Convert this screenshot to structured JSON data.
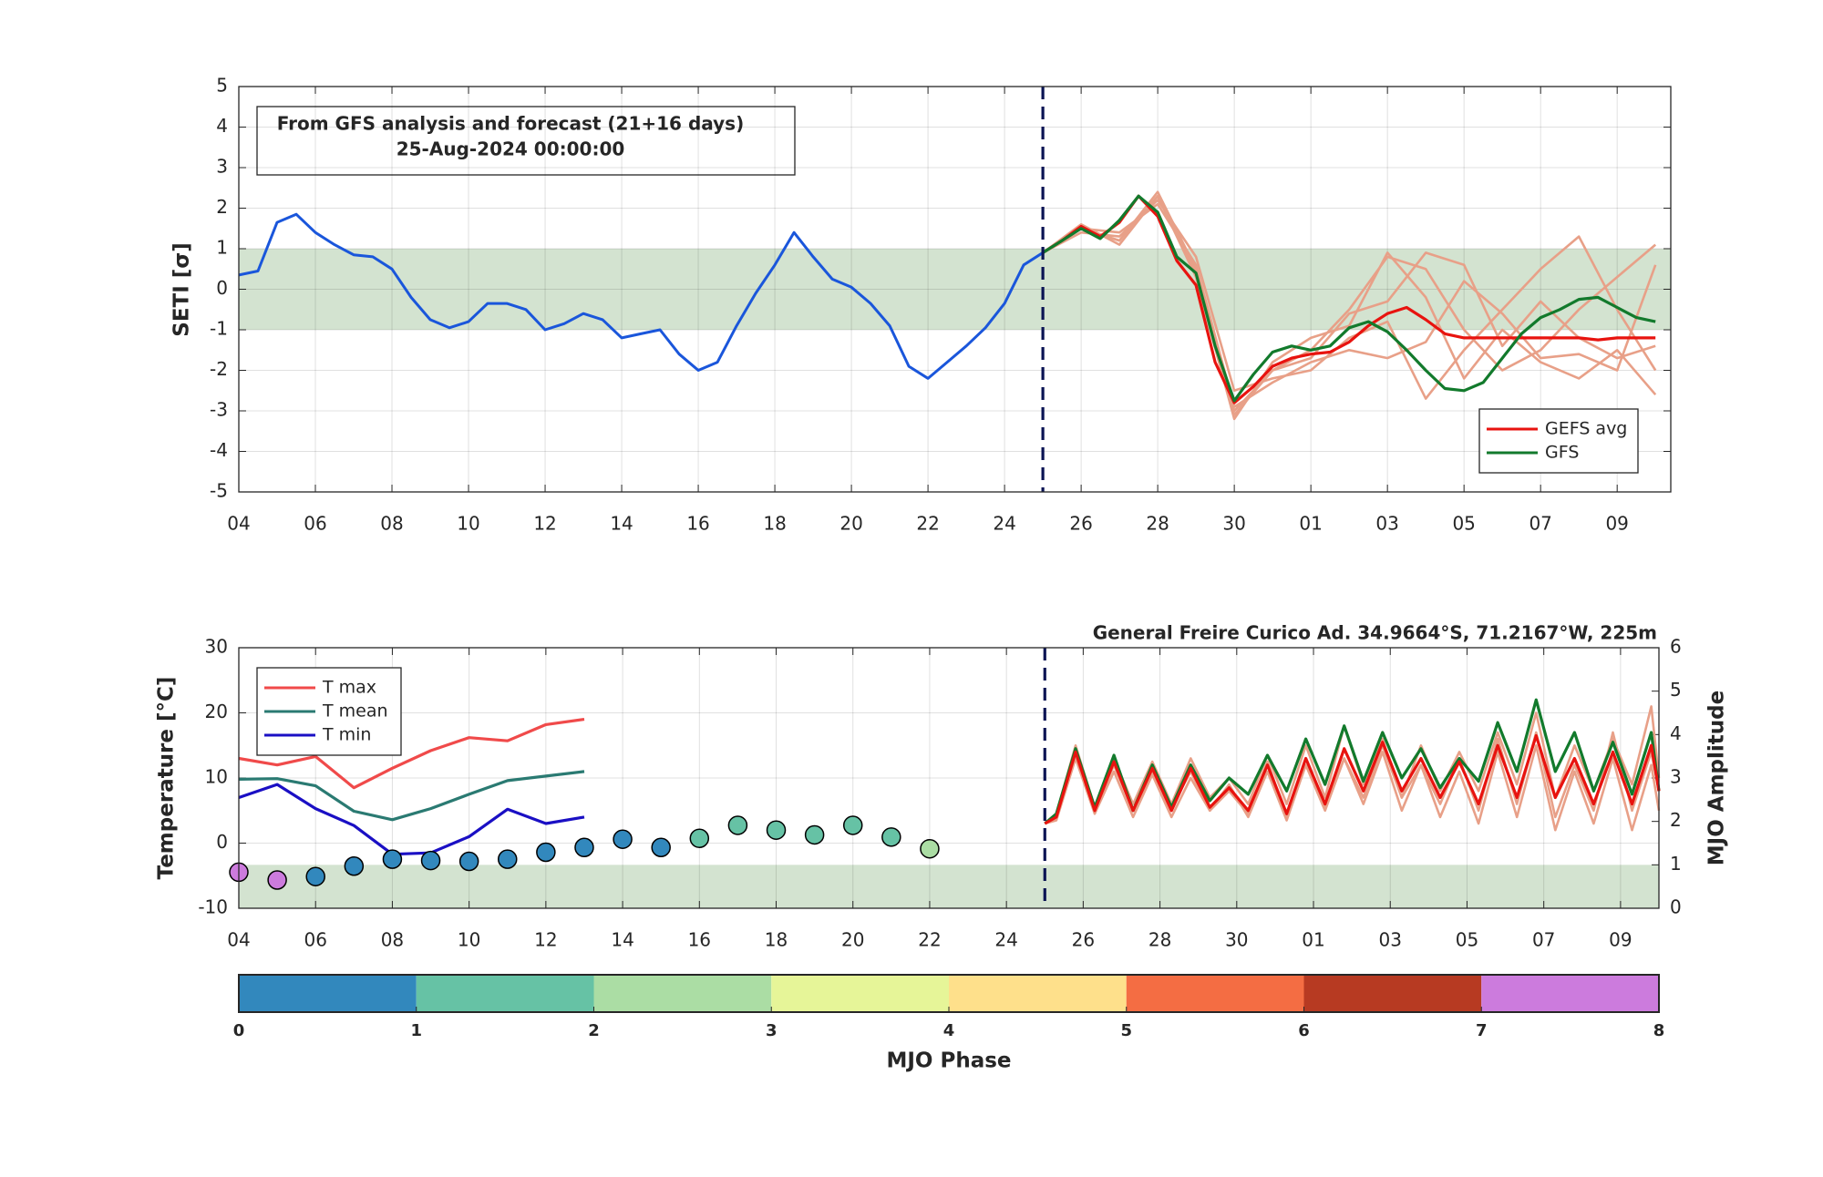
{
  "chart_data": [
    {
      "type": "line",
      "ylabel": "SETI [σ]",
      "annotation": [
        "From GFS analysis and forecast (21+16 days)",
        "25-Aug-2024 00:00:00"
      ],
      "xlim": [
        0,
        37.4
      ],
      "ylim": [
        -5,
        5
      ],
      "yticks": [
        -5,
        -4,
        -3,
        -2,
        -1,
        0,
        1,
        2,
        3,
        4,
        5
      ],
      "xticks": [
        {
          "value": 0,
          "label": "04"
        },
        {
          "value": 2,
          "label": "06"
        },
        {
          "value": 4,
          "label": "08"
        },
        {
          "value": 6,
          "label": "10"
        },
        {
          "value": 8,
          "label": "12"
        },
        {
          "value": 10,
          "label": "14"
        },
        {
          "value": 12,
          "label": "16"
        },
        {
          "value": 14,
          "label": "18"
        },
        {
          "value": 16,
          "label": "20"
        },
        {
          "value": 18,
          "label": "22"
        },
        {
          "value": 20,
          "label": "24"
        },
        {
          "value": 22,
          "label": "26"
        },
        {
          "value": 24,
          "label": "28"
        },
        {
          "value": 26,
          "label": "30"
        },
        {
          "value": 28,
          "label": "01"
        },
        {
          "value": 30,
          "label": "03"
        },
        {
          "value": 32,
          "label": "05"
        },
        {
          "value": 34,
          "label": "07"
        },
        {
          "value": 36,
          "label": "09"
        }
      ],
      "grid": true,
      "band": [
        -1,
        1
      ],
      "band_color": "#d3e3d0",
      "forecast_start": 21,
      "legend": "lower right",
      "analysis": {
        "color": "#1a56db",
        "x": [
          0,
          0.5,
          1,
          1.5,
          2,
          2.5,
          3,
          3.5,
          4,
          4.5,
          5,
          5.5,
          6,
          6.5,
          7,
          7.5,
          8,
          8.5,
          9,
          9.5,
          10,
          10.5,
          11,
          11.5,
          12,
          12.5,
          13,
          13.5,
          14,
          14.5,
          15,
          15.5,
          16,
          16.5,
          17,
          17.5,
          18,
          18.5,
          19,
          19.5,
          20,
          20.5,
          21
        ],
        "values": [
          0.35,
          0.45,
          1.65,
          1.85,
          1.4,
          1.1,
          0.85,
          0.8,
          0.5,
          -0.2,
          -0.75,
          -0.95,
          -0.8,
          -0.35,
          -0.35,
          -0.5,
          -1.0,
          -0.85,
          -0.6,
          -0.75,
          -1.2,
          -1.1,
          -1.0,
          -1.6,
          -2.0,
          -1.8,
          -0.9,
          -0.1,
          0.6,
          1.4,
          0.8,
          0.25,
          0.05,
          -0.35,
          -0.9,
          -1.9,
          -2.2,
          -1.8,
          -1.4,
          -0.95,
          -0.35,
          0.6,
          0.9
        ]
      },
      "ensemble": {
        "color": "#e8a088",
        "x": [
          21,
          22,
          23,
          24,
          25,
          26,
          27,
          28,
          29,
          30,
          31,
          32,
          33,
          34,
          35,
          36,
          37
        ],
        "members": [
          [
            0.9,
            1.5,
            1.2,
            2.4,
            0.5,
            -3.0,
            -2.0,
            -1.5,
            -0.5,
            0.8,
            0.5,
            -1.0,
            -2.0,
            -1.5,
            -0.5,
            0.3,
            1.1
          ],
          [
            0.9,
            1.4,
            1.3,
            2.2,
            0.8,
            -2.5,
            -2.2,
            -2.0,
            -1.2,
            -0.8,
            -2.7,
            -1.5,
            -0.5,
            0.5,
            1.3,
            -0.5,
            -2.0
          ],
          [
            0.9,
            1.6,
            1.1,
            2.3,
            0.3,
            -3.2,
            -1.8,
            -1.2,
            -0.9,
            0.9,
            -0.2,
            -2.2,
            -1.0,
            -1.8,
            -2.2,
            -1.5,
            -2.6
          ],
          [
            0.9,
            1.5,
            1.4,
            2.1,
            0.6,
            -2.9,
            -2.3,
            -1.8,
            -1.5,
            -1.7,
            -1.3,
            0.2,
            -0.6,
            -1.7,
            -1.6,
            -2.0,
            0.6
          ],
          [
            0.9,
            1.5,
            1.2,
            2.3,
            0.4,
            -3.1,
            -2.0,
            -1.7,
            -0.6,
            -0.3,
            0.9,
            0.6,
            -1.4,
            -0.3,
            -1.2,
            -1.7,
            -1.4
          ]
        ]
      },
      "series": [
        {
          "name": "GEFS avg",
          "color": "#e8130f",
          "x": [
            21,
            21.5,
            22,
            22.5,
            23,
            23.5,
            24,
            24.5,
            25,
            25.5,
            26,
            26.5,
            27,
            27.5,
            28,
            28.5,
            29,
            29.5,
            30,
            30.5,
            31,
            31.5,
            32,
            32.5,
            33,
            33.5,
            34,
            34.5,
            35,
            35.5,
            36,
            36.5,
            37
          ],
          "values": [
            0.9,
            1.2,
            1.55,
            1.3,
            1.65,
            2.3,
            1.8,
            0.7,
            0.1,
            -1.8,
            -2.8,
            -2.4,
            -1.9,
            -1.7,
            -1.6,
            -1.55,
            -1.3,
            -0.9,
            -0.6,
            -0.45,
            -0.75,
            -1.1,
            -1.2,
            -1.2,
            -1.2,
            -1.2,
            -1.2,
            -1.2,
            -1.2,
            -1.25,
            -1.2,
            -1.2,
            -1.2
          ]
        },
        {
          "name": "GFS",
          "color": "#127a2c",
          "x": [
            21,
            21.5,
            22,
            22.5,
            23,
            23.5,
            24,
            24.5,
            25,
            25.5,
            26,
            26.5,
            27,
            27.5,
            28,
            28.5,
            29,
            29.5,
            30,
            30.5,
            31,
            31.5,
            32,
            32.5,
            33,
            33.5,
            34,
            34.5,
            35,
            35.5,
            36,
            36.5,
            37
          ],
          "values": [
            0.9,
            1.2,
            1.5,
            1.25,
            1.7,
            2.3,
            1.9,
            0.8,
            0.4,
            -1.4,
            -2.75,
            -2.1,
            -1.55,
            -1.4,
            -1.5,
            -1.4,
            -0.95,
            -0.8,
            -1.05,
            -1.5,
            -2.0,
            -2.45,
            -2.5,
            -2.3,
            -1.7,
            -1.1,
            -0.7,
            -0.5,
            -0.25,
            -0.2,
            -0.45,
            -0.7,
            -0.8
          ]
        }
      ]
    },
    {
      "type": "line",
      "title": "General Freire Curico Ad. 34.9664°S, 71.2167°W, 225m",
      "ylabel": "Temperature [°C]",
      "y2label": "MJO Amplitude",
      "xlim": [
        0,
        37
      ],
      "ylim": [
        -10,
        30
      ],
      "yticks": [
        -10,
        0,
        10,
        20,
        30
      ],
      "y2lim": [
        0,
        6
      ],
      "y2ticks": [
        0,
        1,
        2,
        3,
        4,
        5,
        6
      ],
      "xticks": [
        {
          "value": 0,
          "label": "04"
        },
        {
          "value": 2,
          "label": "06"
        },
        {
          "value": 4,
          "label": "08"
        },
        {
          "value": 6,
          "label": "10"
        },
        {
          "value": 8,
          "label": "12"
        },
        {
          "value": 10,
          "label": "14"
        },
        {
          "value": 12,
          "label": "16"
        },
        {
          "value": 14,
          "label": "18"
        },
        {
          "value": 16,
          "label": "20"
        },
        {
          "value": 18,
          "label": "22"
        },
        {
          "value": 20,
          "label": "24"
        },
        {
          "value": 22,
          "label": "26"
        },
        {
          "value": 24,
          "label": "28"
        },
        {
          "value": 26,
          "label": "30"
        },
        {
          "value": 28,
          "label": "01"
        },
        {
          "value": 30,
          "label": "03"
        },
        {
          "value": 32,
          "label": "05"
        },
        {
          "value": 34,
          "label": "07"
        },
        {
          "value": 36,
          "label": "09"
        }
      ],
      "grid": true,
      "band": [
        0,
        1
      ],
      "band_color": "#d3e3d0",
      "forecast_start": 21,
      "legend": "upper left",
      "series": [
        {
          "name": "T max",
          "color": "#f04a4a",
          "x": [
            0,
            1,
            2,
            3,
            4,
            5,
            6,
            7,
            8,
            9
          ],
          "values": [
            13,
            12,
            13.3,
            8.5,
            11.5,
            14.2,
            16.2,
            15.7,
            18.2,
            19
          ]
        },
        {
          "name": "T mean",
          "color": "#2a7a72",
          "x": [
            0,
            1,
            2,
            3,
            4,
            5,
            6,
            7,
            8,
            9
          ],
          "values": [
            9.8,
            9.9,
            8.8,
            4.9,
            3.6,
            5.3,
            7.5,
            9.6,
            10.3,
            11
          ]
        },
        {
          "name": "T min",
          "color": "#1a0fc4",
          "x": [
            0,
            1,
            2,
            3,
            4,
            5,
            6,
            7,
            8,
            9
          ],
          "values": [
            7,
            9,
            5.3,
            2.7,
            -1.7,
            -1.5,
            1,
            5.2,
            3,
            4
          ]
        }
      ],
      "forecast_x": [
        21,
        21.3,
        21.8,
        22.3,
        22.8,
        23.3,
        23.8,
        24.3,
        24.8,
        25.3,
        25.8,
        26.3,
        26.8,
        27.3,
        27.8,
        28.3,
        28.8,
        29.3,
        29.8,
        30.3,
        30.8,
        31.3,
        31.8,
        32.3,
        32.8,
        33.3,
        33.8,
        34.3,
        34.8,
        35.3,
        35.8,
        36.3,
        36.8,
        37
      ],
      "ensemble": {
        "color": "#e8a088",
        "members": [
          [
            3,
            3.5,
            13,
            4.5,
            11,
            4,
            10.5,
            4,
            10,
            5,
            9,
            4,
            11,
            3.5,
            12,
            5,
            13,
            6,
            14,
            5,
            12,
            4,
            11,
            3,
            14,
            4,
            15,
            2,
            11,
            3,
            13,
            2,
            12,
            5
          ],
          [
            3,
            4.5,
            15,
            5.5,
            13,
            6,
            12.5,
            6,
            13,
            7,
            10,
            6,
            13.5,
            6,
            15,
            7,
            18,
            9,
            16,
            7,
            15,
            8,
            14,
            8,
            17,
            9,
            20,
            7,
            15,
            8,
            16,
            9,
            21,
            10
          ],
          [
            3,
            4,
            13.5,
            5,
            12,
            5,
            11,
            5.5,
            11,
            5,
            8,
            4.5,
            12.5,
            4,
            12,
            5.5,
            13,
            7,
            15,
            7,
            12,
            6,
            13,
            5,
            16,
            6,
            17,
            4,
            12,
            5,
            17,
            5,
            14,
            8
          ]
        ]
      },
      "forecast": [
        {
          "color": "#127a2c",
          "values": [
            3,
            4.5,
            14.5,
            5.5,
            13.5,
            5,
            12,
            5.5,
            12,
            6.5,
            10,
            7.5,
            13.5,
            8,
            16,
            9,
            18,
            9.5,
            17,
            10,
            14.5,
            8.5,
            13,
            9.5,
            18.5,
            11,
            22,
            11,
            17,
            8,
            15.5,
            7.5,
            17,
            8
          ]
        },
        {
          "color": "#e8130f",
          "values": [
            3,
            4,
            14,
            5,
            12.5,
            5,
            11.5,
            5,
            11.5,
            5.5,
            8.5,
            5,
            12,
            4.5,
            13,
            6,
            14.5,
            8,
            15.5,
            8,
            13,
            7,
            12.5,
            6,
            15,
            7,
            16.5,
            7,
            13,
            6,
            14,
            6,
            15,
            8
          ]
        }
      ],
      "mjo": {
        "x": [
          0,
          1,
          2,
          3,
          4,
          5,
          6,
          7,
          8,
          9,
          10,
          11,
          12,
          13,
          14,
          15,
          16,
          17,
          18
        ],
        "amplitude": [
          0.83,
          0.65,
          0.73,
          0.97,
          1.13,
          1.1,
          1.08,
          1.13,
          1.29,
          1.4,
          1.59,
          1.4,
          1.61,
          1.91,
          1.8,
          1.69,
          1.91,
          1.64,
          1.37
        ],
        "phase": [
          8,
          8,
          1,
          1,
          1,
          1,
          1,
          1,
          1,
          1,
          1,
          1,
          2,
          2,
          2,
          2,
          2,
          2,
          3
        ]
      }
    },
    {
      "type": "colorbar",
      "xlabel": "MJO Phase",
      "ticks": [
        0,
        1,
        2,
        3,
        4,
        5,
        6,
        7,
        8
      ],
      "colors": [
        "#3288bd",
        "#66c2a5",
        "#abdda4",
        "#e6f598",
        "#fee08b",
        "#f46d43",
        "#b73a22",
        "#cc7bdd"
      ]
    }
  ]
}
